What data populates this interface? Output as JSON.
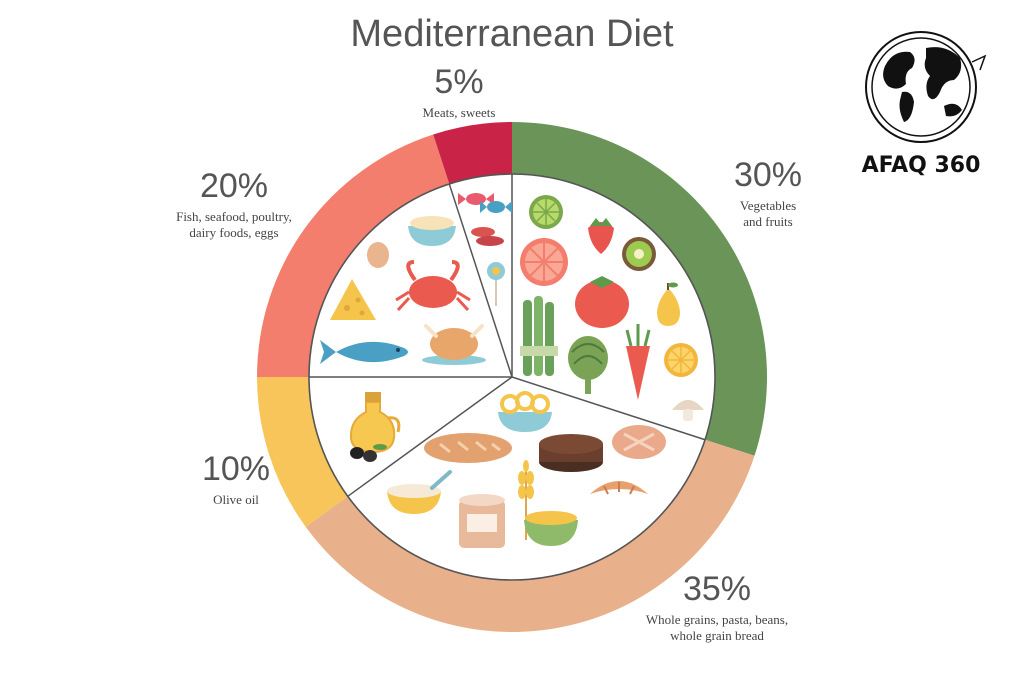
{
  "chart_data": {
    "type": "pie",
    "title": "Mediterranean Diet",
    "start_angle_deg": 0,
    "direction": "clockwise",
    "slices": [
      {
        "value": 30,
        "pct_label": "30%",
        "label_lines": [
          "Vegetables",
          "and fruits"
        ],
        "color": "#6a9458"
      },
      {
        "value": 35,
        "pct_label": "35%",
        "label_lines": [
          "Whole grains, pasta, beans,",
          "whole grain bread"
        ],
        "color": "#e9b08c"
      },
      {
        "value": 10,
        "pct_label": "10%",
        "label_lines": [
          "Olive oil"
        ],
        "color": "#f7c55a"
      },
      {
        "value": 20,
        "pct_label": "20%",
        "label_lines": [
          "Fish, seafood, poultry,",
          "dairy foods, eggs"
        ],
        "color": "#f37e6e"
      },
      {
        "value": 5,
        "pct_label": "5%",
        "label_lines": [
          "Meats, sweets"
        ],
        "color": "#c92347"
      }
    ]
  },
  "logo": {
    "text": "AFAQ 360",
    "icon": "globe-icon"
  },
  "food_icons": {
    "vegetables": [
      "lime-icon",
      "strawberry-icon",
      "grapefruit-icon",
      "kiwi-icon",
      "tomato-icon",
      "pear-icon",
      "asparagus-icon",
      "artichoke-icon",
      "carrot-icon",
      "orange-slice-icon",
      "mushroom-icon"
    ],
    "grains": [
      "pasta-bowl-icon",
      "bread-loaf-icon",
      "rye-bread-icon",
      "round-bread-icon",
      "croissant-icon",
      "porridge-icon",
      "flour-jar-icon",
      "wheat-icon",
      "cereal-bowl-icon"
    ],
    "olive_oil": [
      "oil-jug-icon",
      "olives-icon"
    ],
    "protein": [
      "yogurt-bowl-icon",
      "egg-icon",
      "crab-icon",
      "cheese-icon",
      "fish-icon",
      "roast-chicken-icon"
    ],
    "sweets": [
      "candy-icon",
      "sausage-icon",
      "lollipop-icon"
    ]
  }
}
